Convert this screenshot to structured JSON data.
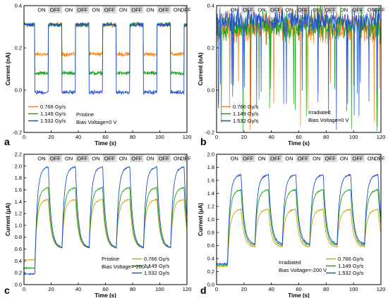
{
  "colors": {
    "s0": "#ff7f0e",
    "s1": "#17a117",
    "s2": "#1f4fd0",
    "off_band": "#d9d9d9"
  },
  "chart_data": [
    {
      "panel": "a",
      "type": "line",
      "xlabel": "Time (s)",
      "ylabel": "Current (nA)",
      "xlim": [
        0,
        120
      ],
      "ylim": [
        -0.2,
        0.4
      ],
      "xticks": [
        "0",
        "20",
        "40",
        "60",
        "80",
        "100",
        "120"
      ],
      "yticks": [
        "-0.2",
        "0.0",
        "0.2",
        "0.4"
      ],
      "bands": [
        "ON",
        "OFF",
        "ON",
        "OFF",
        "ON",
        "OFF",
        "ON",
        "OFF",
        "ON",
        "OFF",
        "ON",
        "OFF"
      ],
      "band_width_s": 10,
      "annotation": [
        "Pristine",
        "Bias Voltage=0 V"
      ],
      "legend_position": "bottom-left",
      "series": [
        {
          "name": "0.766 Gy/s",
          "color": "#ff7f0e",
          "on": 0.17,
          "off": 0.31,
          "noise": 0.012
        },
        {
          "name": "1.149 Gy/s",
          "color": "#17a117",
          "on": 0.08,
          "off": 0.31,
          "noise": 0.012
        },
        {
          "name": "1.532 Gy/s",
          "color": "#1f4fd0",
          "on": -0.01,
          "off": 0.31,
          "noise": 0.012
        }
      ],
      "mode": "square"
    },
    {
      "panel": "b",
      "type": "line",
      "xlabel": "Time (s)",
      "ylabel": "Current (nA)",
      "xlim": [
        0,
        120
      ],
      "ylim": [
        -0.2,
        0.4
      ],
      "xticks": [
        "0",
        "20",
        "40",
        "60",
        "80",
        "100",
        "120"
      ],
      "yticks": [
        "-0.2",
        "0.0",
        "0.2",
        "0.4"
      ],
      "bands": [
        "ON",
        "OFF",
        "ON",
        "OFF",
        "ON",
        "OFF",
        "ON",
        "OFF",
        "ON",
        "OFF",
        "ON",
        "OFF"
      ],
      "band_width_s": 10,
      "annotation": [
        "Irradiated",
        "Bias Voltage=0 V"
      ],
      "legend_position": "bottom-left",
      "series": [
        {
          "name": "0.766 Gy/s",
          "color": "#ff7f0e",
          "on": 0.3,
          "off": 0.3,
          "noise": 0.09
        },
        {
          "name": "1.149 Gy/s",
          "color": "#17a117",
          "on": 0.3,
          "off": 0.3,
          "noise": 0.08
        },
        {
          "name": "1.532 Gy/s",
          "color": "#1f4fd0",
          "on": 0.33,
          "off": 0.33,
          "noise": 0.07
        }
      ],
      "mode": "noisy"
    },
    {
      "panel": "c",
      "type": "line",
      "xlabel": "Time (s)",
      "ylabel": "Current (μA)",
      "xlim": [
        0,
        120
      ],
      "ylim": [
        0.0,
        2.2
      ],
      "xticks": [
        "0",
        "20",
        "40",
        "60",
        "80",
        "100",
        "120"
      ],
      "yticks": [
        "0.0",
        "0.2",
        "0.4",
        "0.6",
        "0.8",
        "1.0",
        "1.2",
        "1.4",
        "1.6",
        "1.8",
        "2.0",
        "2.2"
      ],
      "bands": [
        "ON",
        "OFF",
        "ON",
        "OFF",
        "ON",
        "OFF",
        "ON",
        "OFF",
        "ON",
        "OFF",
        "ON",
        "OFF"
      ],
      "band_width_s": 10,
      "annotation": [
        "Pristine",
        "Bias Voltage=-200 V"
      ],
      "legend_position": "bottom-right",
      "series": [
        {
          "name": "0.766 Gy/s",
          "color": "#d4a017",
          "on": 1.4,
          "off": 0.62,
          "base": 0.42,
          "noise": 0.012
        },
        {
          "name": "1.149 Gy/s",
          "color": "#17a117",
          "on": 1.6,
          "off": 0.62,
          "base": 0.28,
          "noise": 0.012
        },
        {
          "name": "1.532 Gy/s",
          "color": "#1f4fd0",
          "on": 1.95,
          "off": 0.62,
          "base": 0.18,
          "noise": 0.014
        }
      ],
      "mode": "exp"
    },
    {
      "panel": "d",
      "type": "line",
      "xlabel": "Time (s)",
      "ylabel": "Current (μA)",
      "xlim": [
        0,
        120
      ],
      "ylim": [
        0.0,
        2.0
      ],
      "xticks": [
        "0",
        "20",
        "40",
        "60",
        "80",
        "100",
        "120"
      ],
      "yticks": [
        "0.0",
        "0.2",
        "0.4",
        "0.6",
        "0.8",
        "1.0",
        "1.2",
        "1.4",
        "1.6",
        "1.8",
        "2.0"
      ],
      "bands": [
        "ON",
        "OFF",
        "ON",
        "OFF",
        "ON",
        "OFF",
        "ON",
        "OFF",
        "ON",
        "OFF",
        "ON",
        "OFF"
      ],
      "band_width_s": 10,
      "annotation": [
        "Irradiated",
        "Bias Voltage=-200 V"
      ],
      "legend_position": "bottom-right",
      "series": [
        {
          "name": "0.766 Gy/s",
          "color": "#d4a017",
          "on": 1.12,
          "off": 0.58,
          "base": 0.28,
          "noise": 0.012
        },
        {
          "name": "1.149 Gy/s",
          "color": "#17a117",
          "on": 1.42,
          "off": 0.6,
          "base": 0.3,
          "noise": 0.012
        },
        {
          "name": "1.532 Gy/s",
          "color": "#1f4fd0",
          "on": 1.65,
          "off": 0.62,
          "base": 0.32,
          "noise": 0.014
        }
      ],
      "mode": "exp"
    }
  ]
}
